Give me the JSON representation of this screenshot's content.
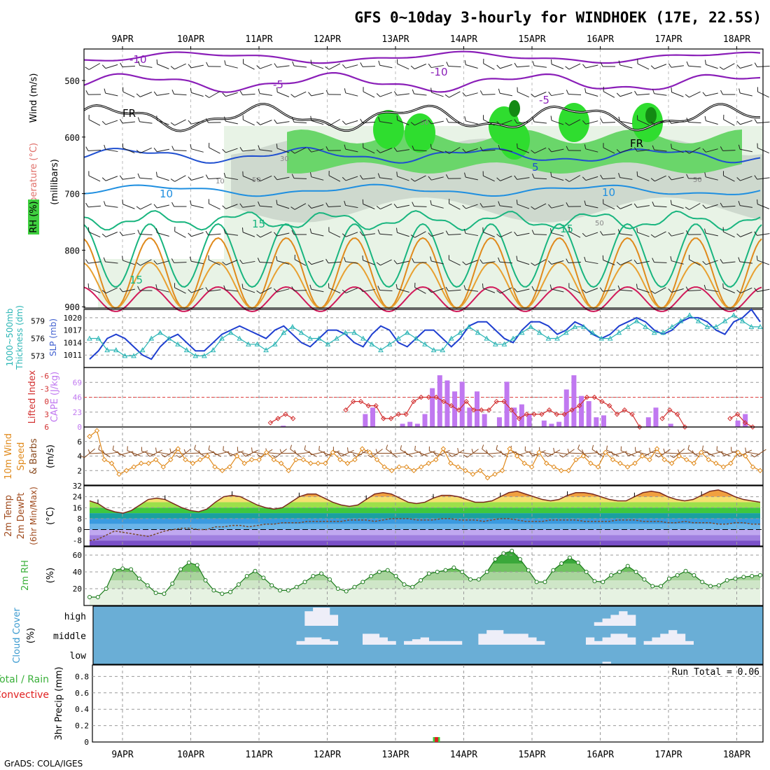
{
  "title": "GFS 0~10day 3-hourly for WINDHOEK (17E, 22.5S)",
  "footer": "GrADS: COLA/IGES",
  "dates": [
    "9APR",
    "10APR",
    "11APR",
    "12APR",
    "13APR",
    "14APR",
    "15APR",
    "16APR",
    "17APR",
    "18APR"
  ],
  "colors": {
    "rh_green": "#3fcf3f",
    "rh_dark": "#1fa21f",
    "grey_cloud": "#c9d3c9",
    "pale": "#e8f3e6",
    "temp_purple": "#8a1eb8",
    "temp_blue": "#1f4fd0",
    "temp_lightblue": "#1f8fe0",
    "temp_teal": "#19b57f",
    "temp_orange": "#e08a1c",
    "temp_red": "#d11a5a",
    "cape": "#c078f0",
    "lifted": "#d23030",
    "wind10": "#e08a1c",
    "cloud_bg": "#6aaed6",
    "precip_rain": "#3fcf3f",
    "precip_conv": "#e02020"
  },
  "panels": {
    "upper": {
      "ylabel_wind": "Wind (m/s)",
      "ylabel_temp": "Temperature (°C)",
      "ylabel_rh": "RH (%)",
      "ylabel_mb": "(millibars)",
      "levels": [
        "500",
        "600",
        "700",
        "800",
        "900"
      ],
      "contour_labels": {
        "m10a": "-10",
        "m10b": "-10",
        "m5a": "-5",
        "m5b": "-5",
        "fr1": "FR",
        "fr2": "FR",
        "p5": "5",
        "p10a": "10",
        "p10b": "10",
        "p15a": "15",
        "p15b": "15",
        "p15c": "15",
        "rh30a": "30",
        "rh30b": "30",
        "rh50a": "50",
        "rh50b": "50",
        "rh50c": "50",
        "rh10": "10"
      }
    },
    "slp": {
      "ylabel_left": "1000~500mb",
      "ylabel_left2": "Thickness (dm)",
      "ylabel_right": "SLP (mb)",
      "ticks_left": [
        "579",
        "576",
        "573"
      ],
      "ticks_right": [
        "1020",
        "1017",
        "1014",
        "1011"
      ]
    },
    "cape": {
      "ylabel_left": "Lifted Index",
      "ylabel_right": "CAPE (J/kg)",
      "ticks_left": [
        "-6",
        "-3",
        "0",
        "3",
        "6"
      ],
      "ticks_right": [
        "69",
        "46",
        "23",
        "0"
      ]
    },
    "wind10": {
      "ylabel1": "10m Wind",
      "ylabel2": "Speed",
      "ylabel3": "& Barbs",
      "ylabel4": "(m/s)",
      "ticks": [
        "6",
        "4",
        "2"
      ]
    },
    "temp2m": {
      "ylabel1": "2m Temp",
      "ylabel2": "2m DewPt",
      "ylabel3": "(6hr Min/Max)",
      "ylabel4": "(°C)",
      "ticks": [
        "32",
        "24",
        "16",
        "8",
        "0",
        "-8"
      ]
    },
    "rh2m": {
      "ylabel1": "2m RH",
      "ylabel2": "(%)",
      "ticks": [
        "60",
        "40",
        "20"
      ]
    },
    "cloud": {
      "ylabel1": "Cloud Cover",
      "ylabel2": "(%)",
      "ticks": [
        "high",
        "middle",
        "low"
      ]
    },
    "precip": {
      "ylabel1": "Total / Rain",
      "ylabel2": "Convective",
      "ylabel3": "3hr Precip (mm)",
      "run_total": "Run Total = 0.06",
      "ticks": [
        "0.8",
        "0.6",
        "0.4",
        "0.2",
        "0"
      ]
    }
  },
  "chart_data": [
    {
      "type": "line",
      "name": "slp",
      "series": [
        {
          "name": "SLP (mb)",
          "values": [
            1010,
            1012,
            1015,
            1016,
            1015,
            1013,
            1011,
            1010,
            1013,
            1015,
            1016,
            1014,
            1012,
            1012,
            1014,
            1016,
            1017,
            1018,
            1017,
            1016,
            1015,
            1017,
            1018,
            1016,
            1014,
            1013,
            1015,
            1017,
            1017,
            1016,
            1014,
            1013,
            1016,
            1018,
            1017,
            1014,
            1013,
            1015,
            1017,
            1017,
            1015,
            1013,
            1015,
            1018,
            1019,
            1019,
            1017,
            1015,
            1014,
            1017,
            1019,
            1019,
            1018,
            1016,
            1017,
            1019,
            1018,
            1016,
            1015,
            1016,
            1018,
            1019,
            1020,
            1019,
            1017,
            1016,
            1017,
            1019,
            1020,
            1020,
            1019,
            1017,
            1016,
            1019,
            1020,
            1022,
            1019
          ]
        },
        {
          "name": "Thickness (dm)",
          "values": [
            576,
            576,
            574,
            574,
            573,
            573,
            574,
            576,
            577,
            576,
            575,
            574,
            573,
            573,
            574,
            576,
            577,
            576,
            575,
            575,
            574,
            575,
            577,
            578,
            577,
            576,
            576,
            575,
            576,
            577,
            577,
            576,
            575,
            574,
            575,
            576,
            577,
            576,
            575,
            574,
            574,
            576,
            577,
            578,
            577,
            576,
            575,
            575,
            576,
            577,
            578,
            577,
            576,
            576,
            577,
            578,
            578,
            577,
            576,
            576,
            577,
            578,
            579,
            578,
            577,
            577,
            578,
            579,
            580,
            579,
            578,
            578,
            579,
            580,
            579,
            578,
            578
          ]
        }
      ]
    },
    {
      "type": "bar",
      "name": "cape_j_kg",
      "values": [
        0,
        0,
        0,
        0,
        0,
        0,
        0,
        0,
        0,
        0,
        0,
        0,
        0,
        0,
        0,
        0,
        0,
        0,
        0,
        0,
        0,
        0,
        0,
        0,
        0,
        0,
        2,
        0,
        0,
        0,
        0,
        0,
        0,
        0,
        0,
        0,
        0,
        20,
        30,
        0,
        0,
        0,
        5,
        8,
        5,
        20,
        60,
        80,
        72,
        55,
        70,
        30,
        55,
        20,
        0,
        15,
        70,
        30,
        35,
        20,
        0,
        10,
        5,
        8,
        58,
        80,
        48,
        40,
        15,
        18,
        0,
        0,
        0,
        0,
        0,
        15,
        30,
        0,
        5,
        0,
        0,
        0,
        0,
        0,
        0,
        0,
        0,
        10,
        20,
        0,
        0
      ]
    },
    {
      "type": "line",
      "name": "lifted_index",
      "values": [
        8,
        8,
        8,
        8,
        8,
        8,
        8,
        8,
        8,
        8,
        8,
        8,
        8,
        8,
        8,
        8,
        8,
        8,
        8,
        8,
        8,
        8,
        8,
        8,
        5,
        4,
        3,
        4,
        8,
        8,
        8,
        8,
        8,
        8,
        2,
        0,
        0,
        1,
        1,
        4,
        4,
        3,
        3,
        0,
        -1,
        -1,
        -1,
        0,
        1,
        2,
        0,
        2,
        2,
        2,
        0,
        0,
        2,
        4,
        3,
        3,
        3,
        2,
        3,
        3,
        2,
        1,
        -1,
        -1,
        0,
        1,
        3,
        2,
        3,
        6,
        8,
        8,
        4,
        2,
        3,
        6,
        8,
        8,
        8,
        8,
        8,
        4,
        3,
        5,
        6,
        8
      ]
    },
    {
      "type": "line",
      "name": "wind10_speed",
      "values": [
        6.7,
        7.5,
        3.5,
        3.0,
        1.5,
        2.0,
        2.5,
        3.0,
        3.0,
        3.5,
        2.5,
        3.5,
        5.0,
        3.5,
        3.0,
        3.5,
        4.0,
        2.5,
        2.0,
        2.5,
        4.0,
        3.0,
        3.5,
        3.5,
        4.5,
        3.5,
        3.0,
        2.0,
        3.5,
        3.5,
        3.0,
        3.0,
        3.0,
        4.5,
        3.5,
        3.0,
        3.5,
        5.0,
        4.5,
        3.5,
        2.5,
        2.0,
        2.5,
        2.5,
        2.0,
        2.5,
        3.0,
        3.5,
        5.0,
        3.0,
        2.5,
        2.0,
        1.5,
        2.0,
        1.0,
        1.5,
        2.0,
        5.0,
        4.0,
        3.0,
        2.5,
        4.5,
        3.0,
        2.5,
        2.0,
        2.0,
        3.5,
        4.0,
        3.0,
        2.5,
        4.5,
        3.5,
        3.0,
        2.5,
        3.0,
        4.0,
        3.5,
        5.0,
        3.5,
        3.0,
        4.0,
        3.5,
        3.0,
        4.5,
        3.5,
        3.0,
        2.5,
        3.0,
        4.5,
        4.0,
        2.5,
        2.0
      ]
    },
    {
      "type": "area",
      "name": "temp_2m",
      "series": [
        {
          "name": "2m Temp",
          "values": [
            21,
            19,
            15,
            13,
            12,
            14,
            18,
            22,
            23,
            22,
            19,
            16,
            14,
            13,
            15,
            20,
            24,
            25,
            24,
            21,
            18,
            16,
            15,
            16,
            20,
            24,
            26,
            26,
            23,
            20,
            18,
            17,
            18,
            22,
            26,
            27,
            26,
            23,
            20,
            19,
            20,
            23,
            25,
            25,
            24,
            22,
            20,
            20,
            21,
            24,
            27,
            28,
            26,
            24,
            22,
            21,
            22,
            25,
            27,
            27,
            26,
            24,
            22,
            21,
            21,
            24,
            27,
            28,
            27,
            24,
            22,
            21,
            22,
            25,
            28,
            29,
            27,
            24,
            22,
            21,
            20
          ]
        },
        {
          "name": "2m DewPt",
          "values": [
            -8,
            -7,
            -4,
            -1,
            -2,
            -3,
            -4,
            -5,
            -3,
            -1,
            0,
            1,
            1,
            0,
            0,
            2,
            2,
            3,
            3,
            2,
            3,
            4,
            4,
            5,
            5,
            5,
            6,
            6,
            6,
            6,
            6,
            7,
            7,
            7,
            6,
            7,
            8,
            8,
            8,
            7,
            7,
            7,
            8,
            8,
            7,
            7,
            7,
            6,
            7,
            8,
            8,
            7,
            6,
            6,
            6,
            7,
            7,
            7,
            7,
            6,
            6,
            6,
            6,
            7,
            7,
            7,
            6,
            6,
            6,
            5,
            5,
            6,
            5,
            5,
            5,
            4,
            4,
            5,
            5,
            4,
            4
          ]
        }
      ]
    },
    {
      "type": "area",
      "name": "rh_2m",
      "values": [
        10,
        10,
        20,
        42,
        44,
        43,
        32,
        24,
        15,
        14,
        26,
        43,
        51,
        48,
        30,
        18,
        14,
        16,
        25,
        35,
        41,
        33,
        24,
        18,
        18,
        22,
        28,
        35,
        38,
        31,
        20,
        17,
        22,
        28,
        35,
        40,
        42,
        35,
        25,
        22,
        30,
        38,
        40,
        42,
        45,
        40,
        31,
        31,
        40,
        55,
        62,
        65,
        55,
        42,
        28,
        28,
        42,
        50,
        57,
        51,
        40,
        29,
        28,
        36,
        40,
        47,
        40,
        31,
        23,
        23,
        32,
        36,
        41,
        36,
        28,
        23,
        24,
        30,
        32,
        34,
        35,
        36
      ]
    },
    {
      "type": "area",
      "name": "cloud_cover",
      "series": [
        {
          "name": "high",
          "values": [
            0,
            0,
            0,
            0,
            0,
            0,
            0,
            0,
            0,
            0,
            0,
            0,
            0,
            0,
            0,
            0,
            0,
            0,
            0,
            0,
            0,
            0,
            0,
            0,
            0,
            80,
            100,
            100,
            60,
            0,
            0,
            0,
            0,
            0,
            0,
            0,
            0,
            0,
            0,
            0,
            0,
            0,
            0,
            0,
            0,
            0,
            0,
            0,
            0,
            0,
            0,
            0,
            0,
            0,
            0,
            0,
            0,
            0,
            0,
            0,
            20,
            40,
            60,
            80,
            60,
            0,
            0,
            0,
            0,
            0,
            0,
            0,
            0,
            0,
            0,
            0,
            0,
            0,
            0,
            0
          ]
        },
        {
          "name": "middle",
          "values": [
            0,
            0,
            0,
            0,
            0,
            0,
            0,
            0,
            0,
            0,
            0,
            0,
            0,
            0,
            0,
            0,
            0,
            0,
            0,
            0,
            0,
            0,
            0,
            0,
            20,
            40,
            40,
            30,
            20,
            0,
            0,
            0,
            60,
            60,
            40,
            20,
            0,
            20,
            30,
            40,
            20,
            20,
            20,
            20,
            0,
            0,
            60,
            80,
            80,
            60,
            60,
            60,
            40,
            20,
            0,
            0,
            0,
            0,
            0,
            40,
            20,
            40,
            60,
            60,
            40,
            0,
            20,
            40,
            60,
            80,
            60,
            20,
            0,
            0,
            0,
            0,
            0,
            0,
            0,
            0
          ]
        },
        {
          "name": "low",
          "values": [
            0,
            0,
            0,
            0,
            0,
            0,
            0,
            0,
            0,
            0,
            0,
            0,
            0,
            0,
            0,
            0,
            0,
            0,
            0,
            0,
            0,
            0,
            0,
            0,
            0,
            0,
            0,
            0,
            0,
            0,
            0,
            0,
            0,
            0,
            0,
            0,
            0,
            0,
            0,
            0,
            0,
            0,
            0,
            0,
            0,
            0,
            0,
            0,
            0,
            0,
            0,
            0,
            0,
            0,
            0,
            0,
            0,
            0,
            0,
            0,
            0,
            10,
            0,
            0,
            0,
            0,
            0,
            0,
            0,
            0,
            0,
            0,
            0,
            0,
            0,
            0,
            0,
            0,
            0,
            0
          ]
        }
      ]
    },
    {
      "type": "bar",
      "name": "precip_3hr_mm",
      "series": [
        {
          "name": "Total / Rain",
          "values": [
            {
              "x": "13APR 18Z",
              "y": 0.06
            }
          ]
        },
        {
          "name": "Convective",
          "values": [
            {
              "x": "13APR 18Z",
              "y": 0.06
            }
          ]
        }
      ]
    }
  ]
}
